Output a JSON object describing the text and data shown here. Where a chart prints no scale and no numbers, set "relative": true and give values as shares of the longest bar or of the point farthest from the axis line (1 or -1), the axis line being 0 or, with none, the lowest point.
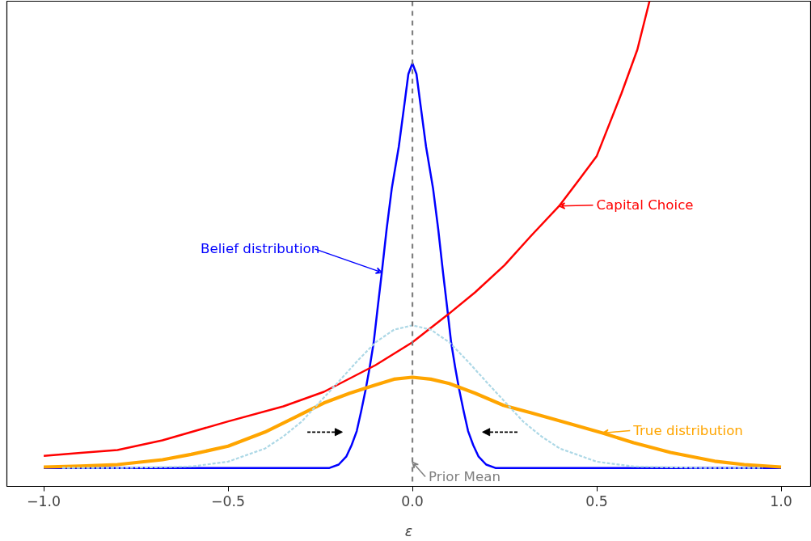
{
  "chart_data": {
    "type": "line",
    "relative": true,
    "xlabel": "ε",
    "xlim": [
      -1.1,
      1.08
    ],
    "xticks": [
      {
        "value": -1,
        "label": "−1.0"
      },
      {
        "value": -0.5,
        "label": "−0.5"
      },
      {
        "value": 0,
        "label": "0.0"
      },
      {
        "value": 0.5,
        "label": "0.5"
      },
      {
        "value": 1,
        "label": "1.0"
      }
    ],
    "grid": false,
    "line_style": "solid",
    "series": [
      {
        "color": "#0000ff",
        "x": [
          -1,
          -0.225,
          -0.2,
          -0.179,
          -0.165,
          -0.151,
          -0.139,
          -0.127,
          -0.116,
          -0.105,
          -0.094,
          -0.083,
          -0.07,
          -0.056,
          -0.037,
          -0.022,
          -0.011,
          0,
          0.011,
          0.022,
          0.037,
          0.056,
          0.07,
          0.083,
          0.094,
          0.105,
          0.116,
          0.127,
          0.139,
          0.151,
          0.165,
          0.179,
          0.2,
          0.225,
          1
        ],
        "values": [
          0.038,
          0.038,
          0.045,
          0.062,
          0.085,
          0.114,
          0.155,
          0.199,
          0.245,
          0.297,
          0.37,
          0.441,
          0.53,
          0.614,
          0.7,
          0.786,
          0.85,
          0.872,
          0.85,
          0.786,
          0.7,
          0.614,
          0.53,
          0.441,
          0.37,
          0.297,
          0.245,
          0.199,
          0.155,
          0.114,
          0.085,
          0.062,
          0.045,
          0.038,
          0.038
        ]
      },
      {
        "color": "#ff0000",
        "x": [
          -1,
          -0.9,
          -0.8,
          -0.678,
          -0.5,
          -0.35,
          -0.24,
          -0.1,
          0,
          0.096,
          0.17,
          0.25,
          0.32,
          0.398,
          0.45,
          0.5,
          0.567,
          0.61,
          0.643
        ],
        "values": [
          0.063,
          0.069,
          0.075,
          0.095,
          0.134,
          0.165,
          0.195,
          0.25,
          0.297,
          0.354,
          0.4,
          0.456,
          0.515,
          0.578,
          0.63,
          0.681,
          0.81,
          0.9,
          1.0
        ]
      },
      {
        "color": "#ffa500",
        "x": [
          -1,
          -0.9,
          -0.8,
          -0.678,
          -0.6,
          -0.5,
          -0.4,
          -0.32,
          -0.24,
          -0.17,
          -0.1,
          -0.05,
          0,
          0.05,
          0.1,
          0.17,
          0.247,
          0.32,
          0.4,
          0.516,
          0.6,
          0.7,
          0.82,
          0.9,
          1
        ],
        "values": [
          0.04,
          0.042,
          0.045,
          0.055,
          0.066,
          0.083,
          0.112,
          0.142,
          0.172,
          0.192,
          0.209,
          0.221,
          0.225,
          0.221,
          0.212,
          0.192,
          0.167,
          0.152,
          0.135,
          0.11,
          0.09,
          0.07,
          0.052,
          0.045,
          0.04
        ]
      },
      {
        "color": "#add8e6",
        "line_style": "dashed",
        "x": [
          -0.95,
          -0.8,
          -0.6,
          -0.5,
          -0.4,
          -0.35,
          -0.3,
          -0.25,
          -0.2,
          -0.15,
          -0.1,
          -0.05,
          0,
          0.05,
          0.1,
          0.15,
          0.2,
          0.25,
          0.3,
          0.35,
          0.4,
          0.5,
          0.6,
          0.8,
          0.95
        ],
        "values": [
          0.038,
          0.038,
          0.041,
          0.051,
          0.078,
          0.103,
          0.134,
          0.175,
          0.216,
          0.258,
          0.297,
          0.323,
          0.332,
          0.323,
          0.297,
          0.258,
          0.216,
          0.175,
          0.134,
          0.103,
          0.078,
          0.051,
          0.041,
          0.038,
          0.038
        ]
      }
    ],
    "ref_lines": [
      {
        "axis": "x",
        "value": 0,
        "color": "#808080",
        "line_style": "dashed"
      }
    ],
    "annotations": [
      {
        "text": "Belief distribution",
        "x": -0.083,
        "y": 0.441
      },
      {
        "text": "Capital Choice",
        "x": 0.398,
        "y": 0.578
      },
      {
        "text": "True distribution",
        "x": 0.516,
        "y": 0.11
      },
      {
        "text": "Prior Mean",
        "x": 0,
        "y": 0.05
      }
    ]
  }
}
